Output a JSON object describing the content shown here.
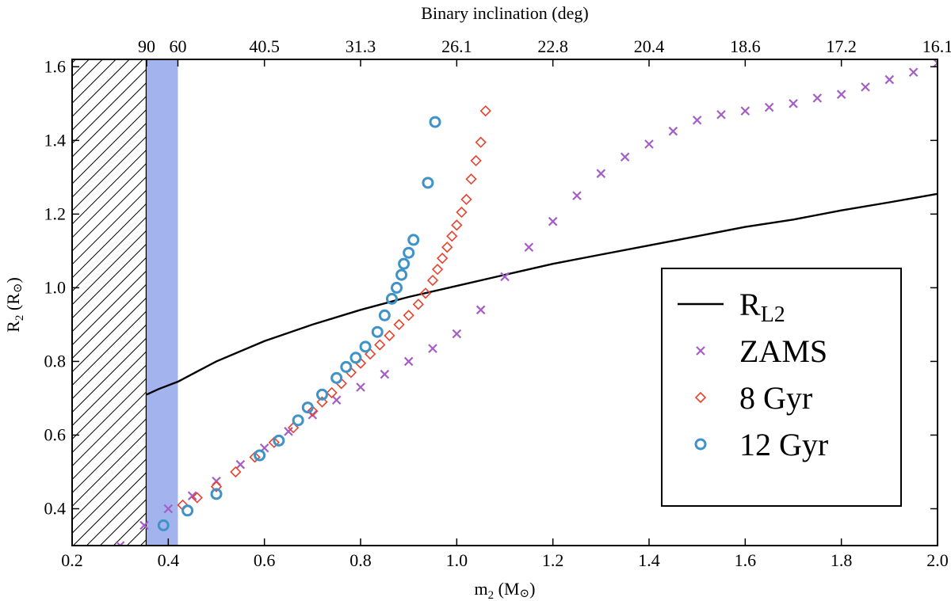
{
  "chart_data": {
    "type": "scatter",
    "xlabel": "m",
    "xlabel_sub": "2",
    "xlabel_unit": " (M",
    "xlabel_unit_symbol": "⊙",
    "xlabel_close": ")",
    "ylabel": "R",
    "ylabel_sub": "2",
    "ylabel_unit": " (R",
    "ylabel_unit_symbol": "⊙",
    "ylabel_close": ")",
    "top_axis_label": "Binary inclination (deg)",
    "xlim": [
      0.2,
      2.0
    ],
    "ylim": [
      0.3,
      1.62
    ],
    "x_ticks": [
      0.2,
      0.4,
      0.6,
      0.8,
      1.0,
      1.2,
      1.4,
      1.6,
      1.8,
      2.0
    ],
    "x_tick_labels": [
      "0.2",
      "0.4",
      "0.6",
      "0.8",
      "1.0",
      "1.2",
      "1.4",
      "1.6",
      "1.8",
      "2.0"
    ],
    "y_ticks": [
      0.4,
      0.6,
      0.8,
      1.0,
      1.2,
      1.4,
      1.6
    ],
    "y_tick_labels": [
      "0.4",
      "0.6",
      "0.8",
      "1.0",
      "1.2",
      "1.4",
      "1.6"
    ],
    "top_ticks": [
      {
        "m2": 0.355,
        "label": "90"
      },
      {
        "m2": 0.42,
        "label": "60"
      },
      {
        "m2": 0.6,
        "label": "40.5"
      },
      {
        "m2": 0.8,
        "label": "31.3"
      },
      {
        "m2": 1.0,
        "label": "26.1"
      },
      {
        "m2": 1.2,
        "label": "22.8"
      },
      {
        "m2": 1.4,
        "label": "20.4"
      },
      {
        "m2": 1.6,
        "label": "18.6"
      },
      {
        "m2": 1.8,
        "label": "17.2"
      },
      {
        "m2": 2.0,
        "label": "16.1"
      }
    ],
    "regions": {
      "hatched_m2_range": [
        0.2,
        0.355
      ],
      "shaded_m2_range": [
        0.355,
        0.42
      ],
      "hatch_color": "#000000",
      "shade_color": "#a3b3ee"
    },
    "series": [
      {
        "name": "R",
        "name_sub": "L2",
        "kind": "line",
        "color": "#000000",
        "x": [
          0.355,
          0.38,
          0.42,
          0.5,
          0.6,
          0.7,
          0.8,
          0.9,
          1.0,
          1.1,
          1.2,
          1.3,
          1.4,
          1.5,
          1.6,
          1.7,
          1.8,
          1.9,
          2.0
        ],
        "y": [
          0.71,
          0.725,
          0.745,
          0.8,
          0.855,
          0.9,
          0.94,
          0.975,
          1.005,
          1.035,
          1.065,
          1.09,
          1.115,
          1.14,
          1.165,
          1.185,
          1.21,
          1.232,
          1.255
        ]
      },
      {
        "name": "ZAMS",
        "kind": "marker",
        "marker": "x",
        "color": "#a45fc4",
        "x": [
          0.3,
          0.35,
          0.4,
          0.45,
          0.5,
          0.55,
          0.6,
          0.65,
          0.7,
          0.75,
          0.8,
          0.85,
          0.9,
          0.95,
          1.0,
          1.05,
          1.1,
          1.15,
          1.2,
          1.25,
          1.3,
          1.35,
          1.4,
          1.45,
          1.5,
          1.55,
          1.6,
          1.65,
          1.7,
          1.75,
          1.8,
          1.85,
          1.9,
          1.95,
          2.0
        ],
        "y": [
          0.3,
          0.355,
          0.4,
          0.435,
          0.475,
          0.52,
          0.565,
          0.61,
          0.655,
          0.695,
          0.73,
          0.765,
          0.8,
          0.835,
          0.875,
          0.94,
          1.03,
          1.11,
          1.18,
          1.25,
          1.31,
          1.355,
          1.39,
          1.425,
          1.455,
          1.47,
          1.48,
          1.49,
          1.5,
          1.515,
          1.525,
          1.545,
          1.565,
          1.585,
          1.61
        ]
      },
      {
        "name": "8 Gyr",
        "kind": "marker",
        "marker": "diamond",
        "color": "#e8412d",
        "x": [
          0.43,
          0.46,
          0.5,
          0.54,
          0.58,
          0.62,
          0.66,
          0.7,
          0.72,
          0.74,
          0.76,
          0.78,
          0.8,
          0.82,
          0.84,
          0.86,
          0.88,
          0.9,
          0.92,
          0.935,
          0.95,
          0.96,
          0.97,
          0.98,
          0.99,
          1.0,
          1.01,
          1.02,
          1.03,
          1.04,
          1.05,
          1.06
        ],
        "y": [
          0.41,
          0.43,
          0.46,
          0.5,
          0.54,
          0.58,
          0.62,
          0.665,
          0.69,
          0.715,
          0.74,
          0.77,
          0.795,
          0.82,
          0.845,
          0.87,
          0.9,
          0.925,
          0.955,
          0.985,
          1.02,
          1.05,
          1.08,
          1.11,
          1.14,
          1.17,
          1.205,
          1.24,
          1.295,
          1.345,
          1.395,
          1.48
        ]
      },
      {
        "name": "12 Gyr",
        "kind": "marker",
        "marker": "circle",
        "color": "#3f93c8",
        "x": [
          0.39,
          0.44,
          0.5,
          0.59,
          0.63,
          0.67,
          0.69,
          0.72,
          0.75,
          0.77,
          0.79,
          0.81,
          0.835,
          0.85,
          0.865,
          0.875,
          0.885,
          0.89,
          0.9,
          0.91,
          0.94,
          0.955
        ],
        "y": [
          0.355,
          0.395,
          0.44,
          0.545,
          0.585,
          0.64,
          0.675,
          0.71,
          0.755,
          0.785,
          0.81,
          0.84,
          0.88,
          0.925,
          0.97,
          1.0,
          1.035,
          1.065,
          1.095,
          1.13,
          1.285,
          1.45
        ]
      }
    ],
    "legend": {
      "placement": "lower-right",
      "entries": [
        {
          "label": "R",
          "label_sub": "L2"
        },
        {
          "label": "ZAMS"
        },
        {
          "label": "8 Gyr"
        },
        {
          "label": "12 Gyr"
        }
      ]
    }
  }
}
